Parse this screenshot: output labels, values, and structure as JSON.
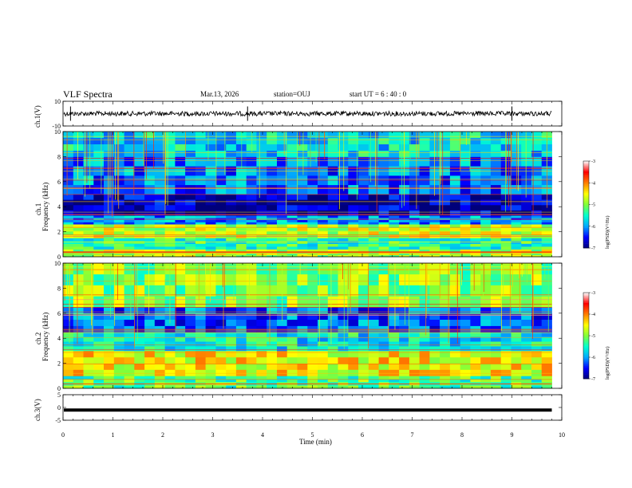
{
  "header": {
    "title": "VLF Spectra",
    "date": "Mar.13, 2026",
    "station": "station=OUJ",
    "start": "start UT =  6 : 40 : 0"
  },
  "colorbar": {
    "label": "log(PSD)(V²/Hz)",
    "ticks": [
      "-3",
      "-4",
      "-5",
      "-6",
      "-7"
    ],
    "range": [
      -7,
      -3
    ],
    "colors": [
      "#00007a",
      "#0000ff",
      "#00a8ff",
      "#00ffd0",
      "#7fff3a",
      "#ffff00",
      "#ff8000",
      "#ff0000",
      "#ffffff"
    ]
  },
  "chart_data": [
    {
      "type": "line",
      "name": "ch1-waveform",
      "ylabel": "ch.1(V)",
      "ylim": [
        -10,
        10
      ],
      "yticks": [
        "10",
        "-10"
      ],
      "xlim": [
        0,
        10
      ],
      "description_values": {
        "mean_level": 0,
        "amplitude_approx": 1.5,
        "spike_times_min": [
          0.15,
          3.7,
          9.0
        ]
      }
    },
    {
      "type": "heatmap",
      "name": "ch1-spectrogram",
      "ylabel_line1": "ch.1",
      "ylabel_line2": "Frequency  (kHz)",
      "ylim": [
        0,
        10
      ],
      "yticks": [
        "0",
        "2",
        "4",
        "6",
        "8",
        "10"
      ],
      "xlim": [
        0,
        10
      ],
      "data_end_min": 9.8,
      "zlim": [
        -7,
        -3
      ],
      "bands_khz": [
        {
          "from": 0,
          "to": 0.6,
          "level": -4.8
        },
        {
          "from": 0.6,
          "to": 1.5,
          "level": -5.4
        },
        {
          "from": 1.5,
          "to": 2.6,
          "level": -4.7
        },
        {
          "from": 2.6,
          "to": 3.3,
          "level": -6.0
        },
        {
          "from": 3.3,
          "to": 5.0,
          "level": -6.8
        },
        {
          "from": 5.0,
          "to": 8.0,
          "level": -6.1
        },
        {
          "from": 8.0,
          "to": 10,
          "level": -5.7
        }
      ]
    },
    {
      "type": "heatmap",
      "name": "ch2-spectrogram",
      "ylabel_line1": "ch.2",
      "ylabel_line2": "Frequency  (kHz)",
      "ylim": [
        0,
        10
      ],
      "yticks": [
        "0",
        "2",
        "4",
        "6",
        "8",
        "10"
      ],
      "xlim": [
        0,
        10
      ],
      "data_end_min": 9.8,
      "zlim": [
        -7,
        -3
      ],
      "bands_khz": [
        {
          "from": 0,
          "to": 1.0,
          "level": -5.2
        },
        {
          "from": 1.0,
          "to": 3.0,
          "level": -4.5
        },
        {
          "from": 3.0,
          "to": 4.5,
          "level": -5.6
        },
        {
          "from": 4.5,
          "to": 6.5,
          "level": -6.2
        },
        {
          "from": 6.5,
          "to": 10,
          "level": -5.0
        }
      ]
    },
    {
      "type": "line",
      "name": "ch3-waveform",
      "ylabel": "ch.3(V)",
      "ylim": [
        -5,
        5
      ],
      "yticks": [
        "5",
        "0",
        "-5"
      ],
      "xlim": [
        0,
        10
      ],
      "level": -1
    }
  ],
  "xaxis": {
    "label": "Time  (min)",
    "ticks": [
      "0",
      "1",
      "2",
      "3",
      "4",
      "5",
      "6",
      "7",
      "8",
      "9",
      "10"
    ],
    "range": [
      0,
      10
    ]
  }
}
